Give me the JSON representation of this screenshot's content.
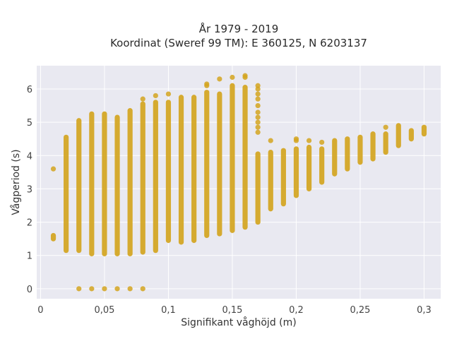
{
  "chart_data": {
    "type": "scatter",
    "title": "År 1979 - 2019",
    "subtitle": "Koordinat (Sweref 99 TM): E 360125, N 6203137",
    "xlabel": "Signifikant våghöjd (m)",
    "ylabel": "Vågperiod (s)",
    "xlim": [
      -0.003,
      0.313
    ],
    "ylim": [
      -0.3,
      6.7
    ],
    "x_ticks": [
      0,
      0.05,
      0.1,
      0.15,
      0.2,
      0.25,
      0.3
    ],
    "x_tick_labels": [
      "0",
      "0,05",
      "0,1",
      "0,15",
      "0,2",
      "0,25",
      "0,3"
    ],
    "y_ticks": [
      0,
      1,
      2,
      3,
      4,
      5,
      6
    ],
    "y_tick_labels": [
      "0",
      "1",
      "2",
      "3",
      "4",
      "5",
      "6"
    ],
    "grid": true,
    "colors": {
      "marker": "#d4a520",
      "plot_bg": "#e9e9f1",
      "grid": "#ffffff"
    },
    "columns": [
      {
        "x": 0.01,
        "ymin": 1.5,
        "ymax": 1.6,
        "extra": [
          3.6
        ]
      },
      {
        "x": 0.02,
        "ymin": 1.15,
        "ymax": 4.55,
        "extra": []
      },
      {
        "x": 0.03,
        "ymin": 1.15,
        "ymax": 5.05,
        "extra": [
          0
        ]
      },
      {
        "x": 0.04,
        "ymin": 1.05,
        "ymax": 5.25,
        "extra": [
          0
        ]
      },
      {
        "x": 0.05,
        "ymin": 1.05,
        "ymax": 5.25,
        "extra": [
          0
        ]
      },
      {
        "x": 0.06,
        "ymin": 1.05,
        "ymax": 5.15,
        "extra": [
          0
        ]
      },
      {
        "x": 0.07,
        "ymin": 1.05,
        "ymax": 5.35,
        "extra": [
          0
        ]
      },
      {
        "x": 0.08,
        "ymin": 1.1,
        "ymax": 5.55,
        "extra": [
          5.7,
          0
        ]
      },
      {
        "x": 0.09,
        "ymin": 1.15,
        "ymax": 5.6,
        "extra": [
          5.8
        ]
      },
      {
        "x": 0.1,
        "ymin": 1.45,
        "ymax": 5.6,
        "extra": [
          5.85
        ]
      },
      {
        "x": 0.11,
        "ymin": 1.4,
        "ymax": 5.75,
        "extra": []
      },
      {
        "x": 0.12,
        "ymin": 1.45,
        "ymax": 5.75,
        "extra": []
      },
      {
        "x": 0.13,
        "ymin": 1.6,
        "ymax": 5.9,
        "extra": [
          6.15,
          6.1
        ]
      },
      {
        "x": 0.14,
        "ymin": 1.65,
        "ymax": 5.85,
        "extra": [
          6.3
        ]
      },
      {
        "x": 0.15,
        "ymin": 1.75,
        "ymax": 6.1,
        "extra": [
          6.35
        ]
      },
      {
        "x": 0.16,
        "ymin": 1.85,
        "ymax": 6.05,
        "extra": [
          6.4,
          6.35
        ]
      },
      {
        "x": 0.17,
        "ymin": 2.0,
        "ymax": 4.05,
        "extra": [
          4.7,
          4.85,
          5.0,
          5.15,
          5.3,
          5.5,
          5.7,
          5.85,
          6.0,
          6.1
        ]
      },
      {
        "x": 0.18,
        "ymin": 2.4,
        "ymax": 4.1,
        "extra": [
          4.45
        ]
      },
      {
        "x": 0.19,
        "ymin": 2.55,
        "ymax": 4.15,
        "extra": []
      },
      {
        "x": 0.2,
        "ymin": 2.8,
        "ymax": 4.2,
        "extra": [
          4.45,
          4.5
        ]
      },
      {
        "x": 0.21,
        "ymin": 3.0,
        "ymax": 4.25,
        "extra": [
          4.45
        ]
      },
      {
        "x": 0.22,
        "ymin": 3.2,
        "ymax": 4.2,
        "extra": [
          4.4
        ]
      },
      {
        "x": 0.23,
        "ymin": 3.45,
        "ymax": 4.45,
        "extra": []
      },
      {
        "x": 0.24,
        "ymin": 3.6,
        "ymax": 4.5,
        "extra": []
      },
      {
        "x": 0.25,
        "ymin": 3.8,
        "ymax": 4.55,
        "extra": []
      },
      {
        "x": 0.26,
        "ymin": 3.9,
        "ymax": 4.65,
        "extra": []
      },
      {
        "x": 0.27,
        "ymin": 4.1,
        "ymax": 4.65,
        "extra": [
          4.85
        ]
      },
      {
        "x": 0.28,
        "ymin": 4.3,
        "ymax": 4.9,
        "extra": []
      },
      {
        "x": 0.29,
        "ymin": 4.5,
        "ymax": 4.75,
        "extra": []
      },
      {
        "x": 0.3,
        "ymin": 4.65,
        "ymax": 4.85,
        "extra": []
      }
    ]
  }
}
